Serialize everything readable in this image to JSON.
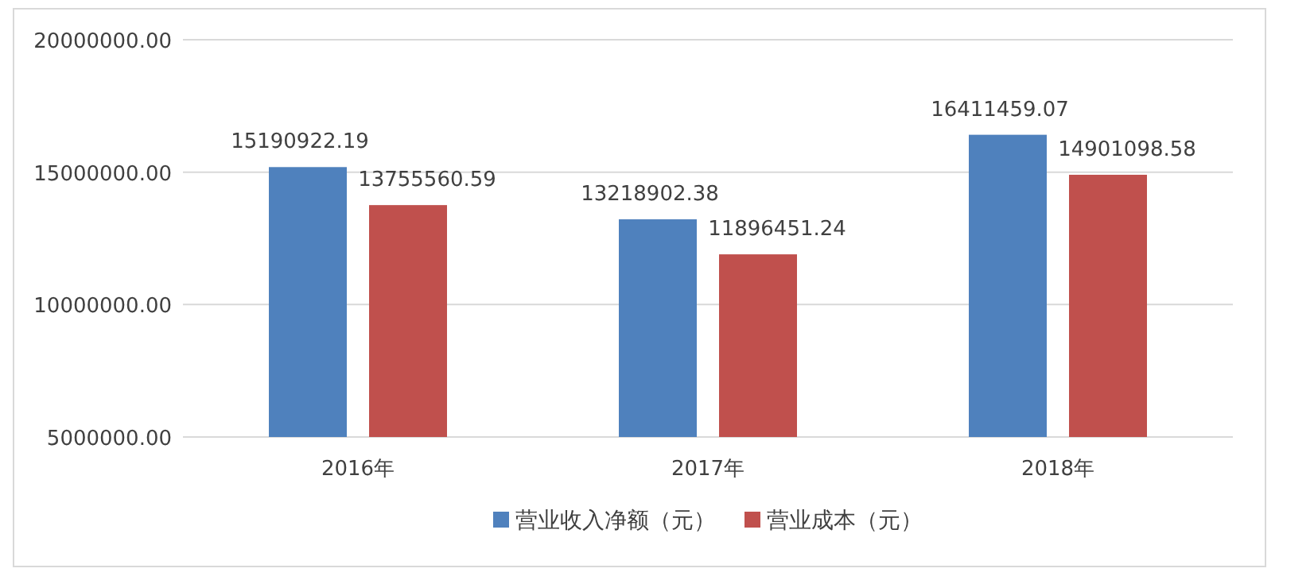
{
  "chart_data": {
    "type": "bar",
    "categories": [
      "2016年",
      "2017年",
      "2018年"
    ],
    "series": [
      {
        "name": "营业收入净额（元）",
        "color": "#4f81bd",
        "values": [
          15190922.19,
          13218902.38,
          16411459.07
        ]
      },
      {
        "name": "营业成本（元）",
        "color": "#c0504d",
        "values": [
          13755560.59,
          11896451.24,
          14901098.58
        ]
      }
    ],
    "ylim": [
      5000000,
      20000000
    ],
    "yticks": [
      {
        "value": 5000000,
        "label": "5000000.00"
      },
      {
        "value": 10000000,
        "label": "10000000.00"
      },
      {
        "value": 15000000,
        "label": "15000000.00"
      },
      {
        "value": 20000000,
        "label": "20000000.00"
      }
    ],
    "grid": "y",
    "legend": "bottom",
    "data_labels": true
  }
}
